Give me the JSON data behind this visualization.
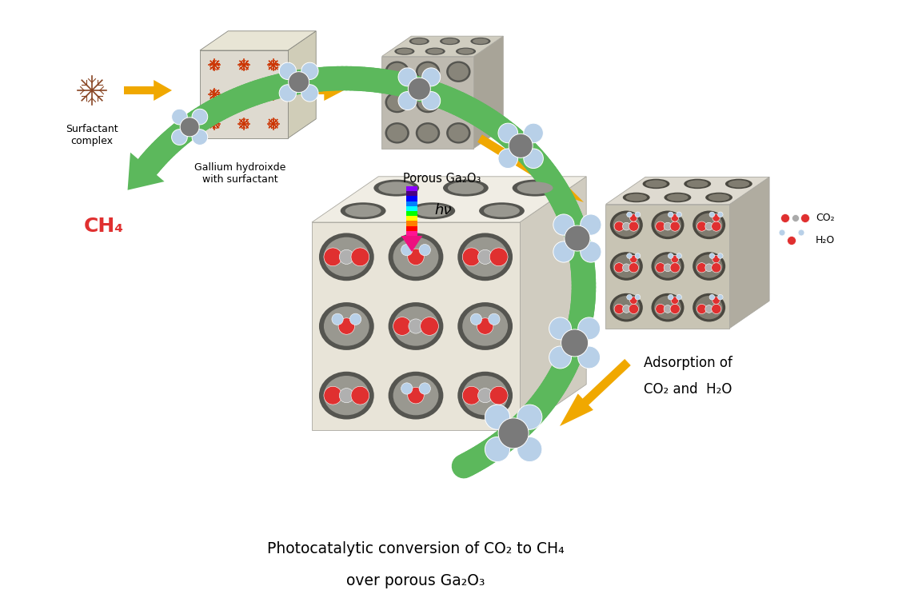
{
  "bg_color": "#ffffff",
  "arrow_orange": "#F0A800",
  "arrow_green": "#5CB85C",
  "color_red": "#E03030",
  "color_gray_dark": "#888888",
  "color_lightblue": "#B8D0E8",
  "spectrum_colors": [
    "#8B00FF",
    "#4B0082",
    "#0000FF",
    "#007FFF",
    "#00FFFF",
    "#00FF00",
    "#FFFF00",
    "#FF7F00",
    "#FF0000",
    "#FF1493"
  ],
  "label_surfactant": "Surfactant\ncomplex",
  "label_gallium": "Gallium hydroixde\nwith surfactant",
  "label_porous": "Porous Ga₂O₃",
  "label_adsorption1": "Adsorption of",
  "label_adsorption2": "CO₂ and  H₂O",
  "label_ch4": "CH₄",
  "label_hv": "hν",
  "label_co2": "CO₂",
  "label_h2o": "H₂O",
  "title_line1": "Photocatalytic conversion of CO₂ to CH₄",
  "title_line2": "over porous Ga₂O₃"
}
